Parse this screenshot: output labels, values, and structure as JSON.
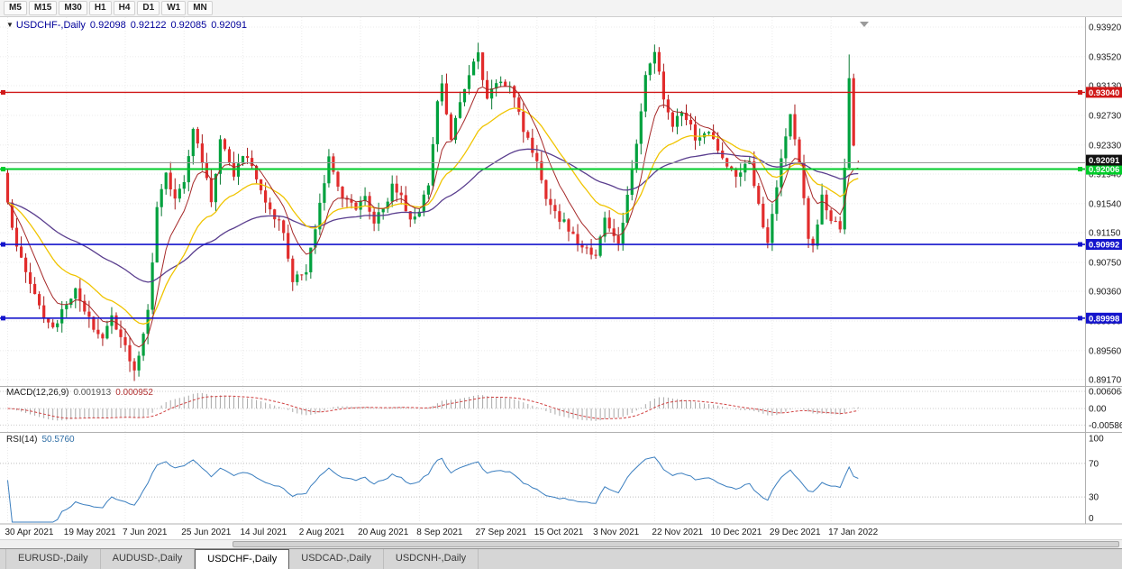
{
  "icons": {
    "symbol_dropdown": "▼"
  },
  "colors": {
    "bull": "#00a13e",
    "bull_stroke": "#0a7a33",
    "bear": "#e22c2c",
    "bear_stroke": "#a61b1b",
    "ma_fast": "#a52828",
    "ma_mid": "#f0c400",
    "ma_slow": "#5a3e8e",
    "macd_histogram": "#a8a8a8",
    "macd_signal": "#d04040",
    "rsi_line": "#3a7ebf",
    "grid": "#ebebeb",
    "axis_text": "#1a1a1a",
    "separator": "#b0b0b0",
    "current_price_line": "#9a9a9a",
    "current_price_tag_bg": "#111111"
  },
  "toolbar": {
    "timeframes": [
      "M5",
      "M15",
      "M30",
      "H1",
      "H4",
      "D1",
      "W1",
      "MN"
    ]
  },
  "chart_header": {
    "symbol": "USDCHF-,Daily",
    "open": "0.92098",
    "high": "0.92122",
    "low": "0.92085",
    "close": "0.92091"
  },
  "price_axis": {
    "max": 0.9392,
    "min": 0.8917,
    "labels": [
      {
        "text": "0.93920",
        "value": 0.9392
      },
      {
        "text": "0.93520",
        "value": 0.9352
      },
      {
        "text": "0.93130",
        "value": 0.9313
      },
      {
        "text": "0.92730",
        "value": 0.9273
      },
      {
        "text": "0.92330",
        "value": 0.9233
      },
      {
        "text": "0.91940",
        "value": 0.9194
      },
      {
        "text": "0.91540",
        "value": 0.9154
      },
      {
        "text": "0.91150",
        "value": 0.9115
      },
      {
        "text": "0.90750",
        "value": 0.9075
      },
      {
        "text": "0.90360",
        "value": 0.9036
      },
      {
        "text": "0.89960",
        "value": 0.8996
      },
      {
        "text": "0.89560",
        "value": 0.8956
      },
      {
        "text": "0.89170",
        "value": 0.8917
      }
    ]
  },
  "levels": [
    {
      "label": "0.93040",
      "value": 0.9304,
      "color": "#d01818",
      "width": 1.4,
      "name": "resistance-line-red"
    },
    {
      "label": "0.92006",
      "value": 0.92006,
      "color": "#00cc2a",
      "width": 2,
      "name": "support-line-green"
    },
    {
      "label": "0.90992",
      "value": 0.90992,
      "color": "#1414cc",
      "width": 1.6,
      "name": "support-line-blue-upper"
    },
    {
      "label": "0.89998",
      "value": 0.89998,
      "color": "#1414cc",
      "width": 1.6,
      "name": "support-line-blue-lower"
    }
  ],
  "current_price": {
    "label": "0.92091",
    "value": 0.92091
  },
  "macd": {
    "title": "MACD(12,26,9)",
    "main_value": "0.001913",
    "signal_value": "0.000952",
    "axis": [
      {
        "text": "0.006068",
        "value": 0.006068
      },
      {
        "text": "0.00",
        "value": 0
      },
      {
        "text": "-0.005869",
        "value": -0.005869
      }
    ]
  },
  "rsi": {
    "title": "RSI(14)",
    "value": "50.5760",
    "axis": [
      {
        "text": "100",
        "value": 100
      },
      {
        "text": "70",
        "value": 70
      },
      {
        "text": "30",
        "value": 30
      },
      {
        "text": "0",
        "value": 0
      }
    ],
    "guide_levels": [
      70,
      30
    ]
  },
  "tabs": [
    {
      "label": "EURUSD-,Daily",
      "active": false
    },
    {
      "label": "AUDUSD-,Daily",
      "active": false
    },
    {
      "label": "USDCHF-,Daily",
      "active": true
    },
    {
      "label": "USDCAD-,Daily",
      "active": false
    },
    {
      "label": "USDCNH-,Daily",
      "active": false
    }
  ],
  "chart_data": {
    "type": "candlestick",
    "symbol": "USDCHF",
    "timeframe": "Daily",
    "title": "USDCHF-,Daily",
    "price_range": [
      0.8917,
      0.9392
    ],
    "x_tick_dates": [
      "30 Apr 2021",
      "19 May 2021",
      "7 Jun 2021",
      "25 Jun 2021",
      "14 Jul 2021",
      "2 Aug 2021",
      "20 Aug 2021",
      "8 Sep 2021",
      "27 Sep 2021",
      "15 Oct 2021",
      "3 Nov 2021",
      "22 Nov 2021",
      "10 Dec 2021",
      "29 Dec 2021",
      "17 Jan 2022"
    ],
    "candles_per_tick": 13,
    "candle_count": 189,
    "path_anchors": [
      [
        0,
        0.915
      ],
      [
        2,
        0.9102
      ],
      [
        3,
        0.9086
      ],
      [
        5,
        0.9042
      ],
      [
        7,
        0.9012
      ],
      [
        10,
        0.8986
      ],
      [
        13,
        0.9022
      ],
      [
        15,
        0.9038
      ],
      [
        18,
        0.8996
      ],
      [
        21,
        0.8976
      ],
      [
        23,
        0.8998
      ],
      [
        26,
        0.8962
      ],
      [
        28,
        0.8928
      ],
      [
        30,
        0.8978
      ],
      [
        31,
        0.9006
      ],
      [
        33,
        0.9146
      ],
      [
        35,
        0.9196
      ],
      [
        37,
        0.9162
      ],
      [
        39,
        0.9186
      ],
      [
        41,
        0.9252
      ],
      [
        43,
        0.9212
      ],
      [
        45,
        0.9156
      ],
      [
        47,
        0.9242
      ],
      [
        50,
        0.9192
      ],
      [
        52,
        0.9216
      ],
      [
        54,
        0.9206
      ],
      [
        56,
        0.9172
      ],
      [
        58,
        0.915
      ],
      [
        61,
        0.9116
      ],
      [
        63,
        0.9048
      ],
      [
        66,
        0.9066
      ],
      [
        69,
        0.9152
      ],
      [
        71,
        0.9216
      ],
      [
        74,
        0.9162
      ],
      [
        77,
        0.915
      ],
      [
        79,
        0.9166
      ],
      [
        81,
        0.9132
      ],
      [
        83,
        0.9142
      ],
      [
        85,
        0.9176
      ],
      [
        87,
        0.9166
      ],
      [
        89,
        0.9132
      ],
      [
        91,
        0.9146
      ],
      [
        93,
        0.9176
      ],
      [
        95,
        0.9292
      ],
      [
        96,
        0.9312
      ],
      [
        98,
        0.9236
      ],
      [
        100,
        0.9292
      ],
      [
        102,
        0.9332
      ],
      [
        104,
        0.9356
      ],
      [
        106,
        0.9292
      ],
      [
        108,
        0.9322
      ],
      [
        111,
        0.9316
      ],
      [
        114,
        0.9252
      ],
      [
        117,
        0.9212
      ],
      [
        119,
        0.9166
      ],
      [
        122,
        0.9132
      ],
      [
        124,
        0.9122
      ],
      [
        127,
        0.9096
      ],
      [
        130,
        0.9086
      ],
      [
        132,
        0.9132
      ],
      [
        135,
        0.9106
      ],
      [
        137,
        0.9162
      ],
      [
        139,
        0.9236
      ],
      [
        141,
        0.9322
      ],
      [
        143,
        0.9362
      ],
      [
        145,
        0.9292
      ],
      [
        147,
        0.9262
      ],
      [
        149,
        0.9282
      ],
      [
        152,
        0.9242
      ],
      [
        155,
        0.9256
      ],
      [
        158,
        0.9216
      ],
      [
        161,
        0.9192
      ],
      [
        164,
        0.9216
      ],
      [
        166,
        0.9152
      ],
      [
        168,
        0.9096
      ],
      [
        170,
        0.9182
      ],
      [
        172,
        0.9246
      ],
      [
        173,
        0.9276
      ],
      [
        175,
        0.9212
      ],
      [
        177,
        0.9112
      ],
      [
        178,
        0.9092
      ],
      [
        180,
        0.9162
      ],
      [
        182,
        0.9136
      ],
      [
        184,
        0.9118
      ],
      [
        185,
        0.92
      ],
      [
        186,
        0.932
      ],
      [
        187,
        0.9228
      ],
      [
        188,
        0.92091
      ]
    ],
    "last_candle": {
      "open": 0.92098,
      "high": 0.92122,
      "low": 0.92085,
      "close": 0.92091
    },
    "horizontal_levels": [
      0.9304,
      0.92006,
      0.90992,
      0.89998
    ],
    "indicators": {
      "macd_main": 0.001913,
      "macd_signal": 0.000952,
      "rsi": 50.576
    }
  }
}
